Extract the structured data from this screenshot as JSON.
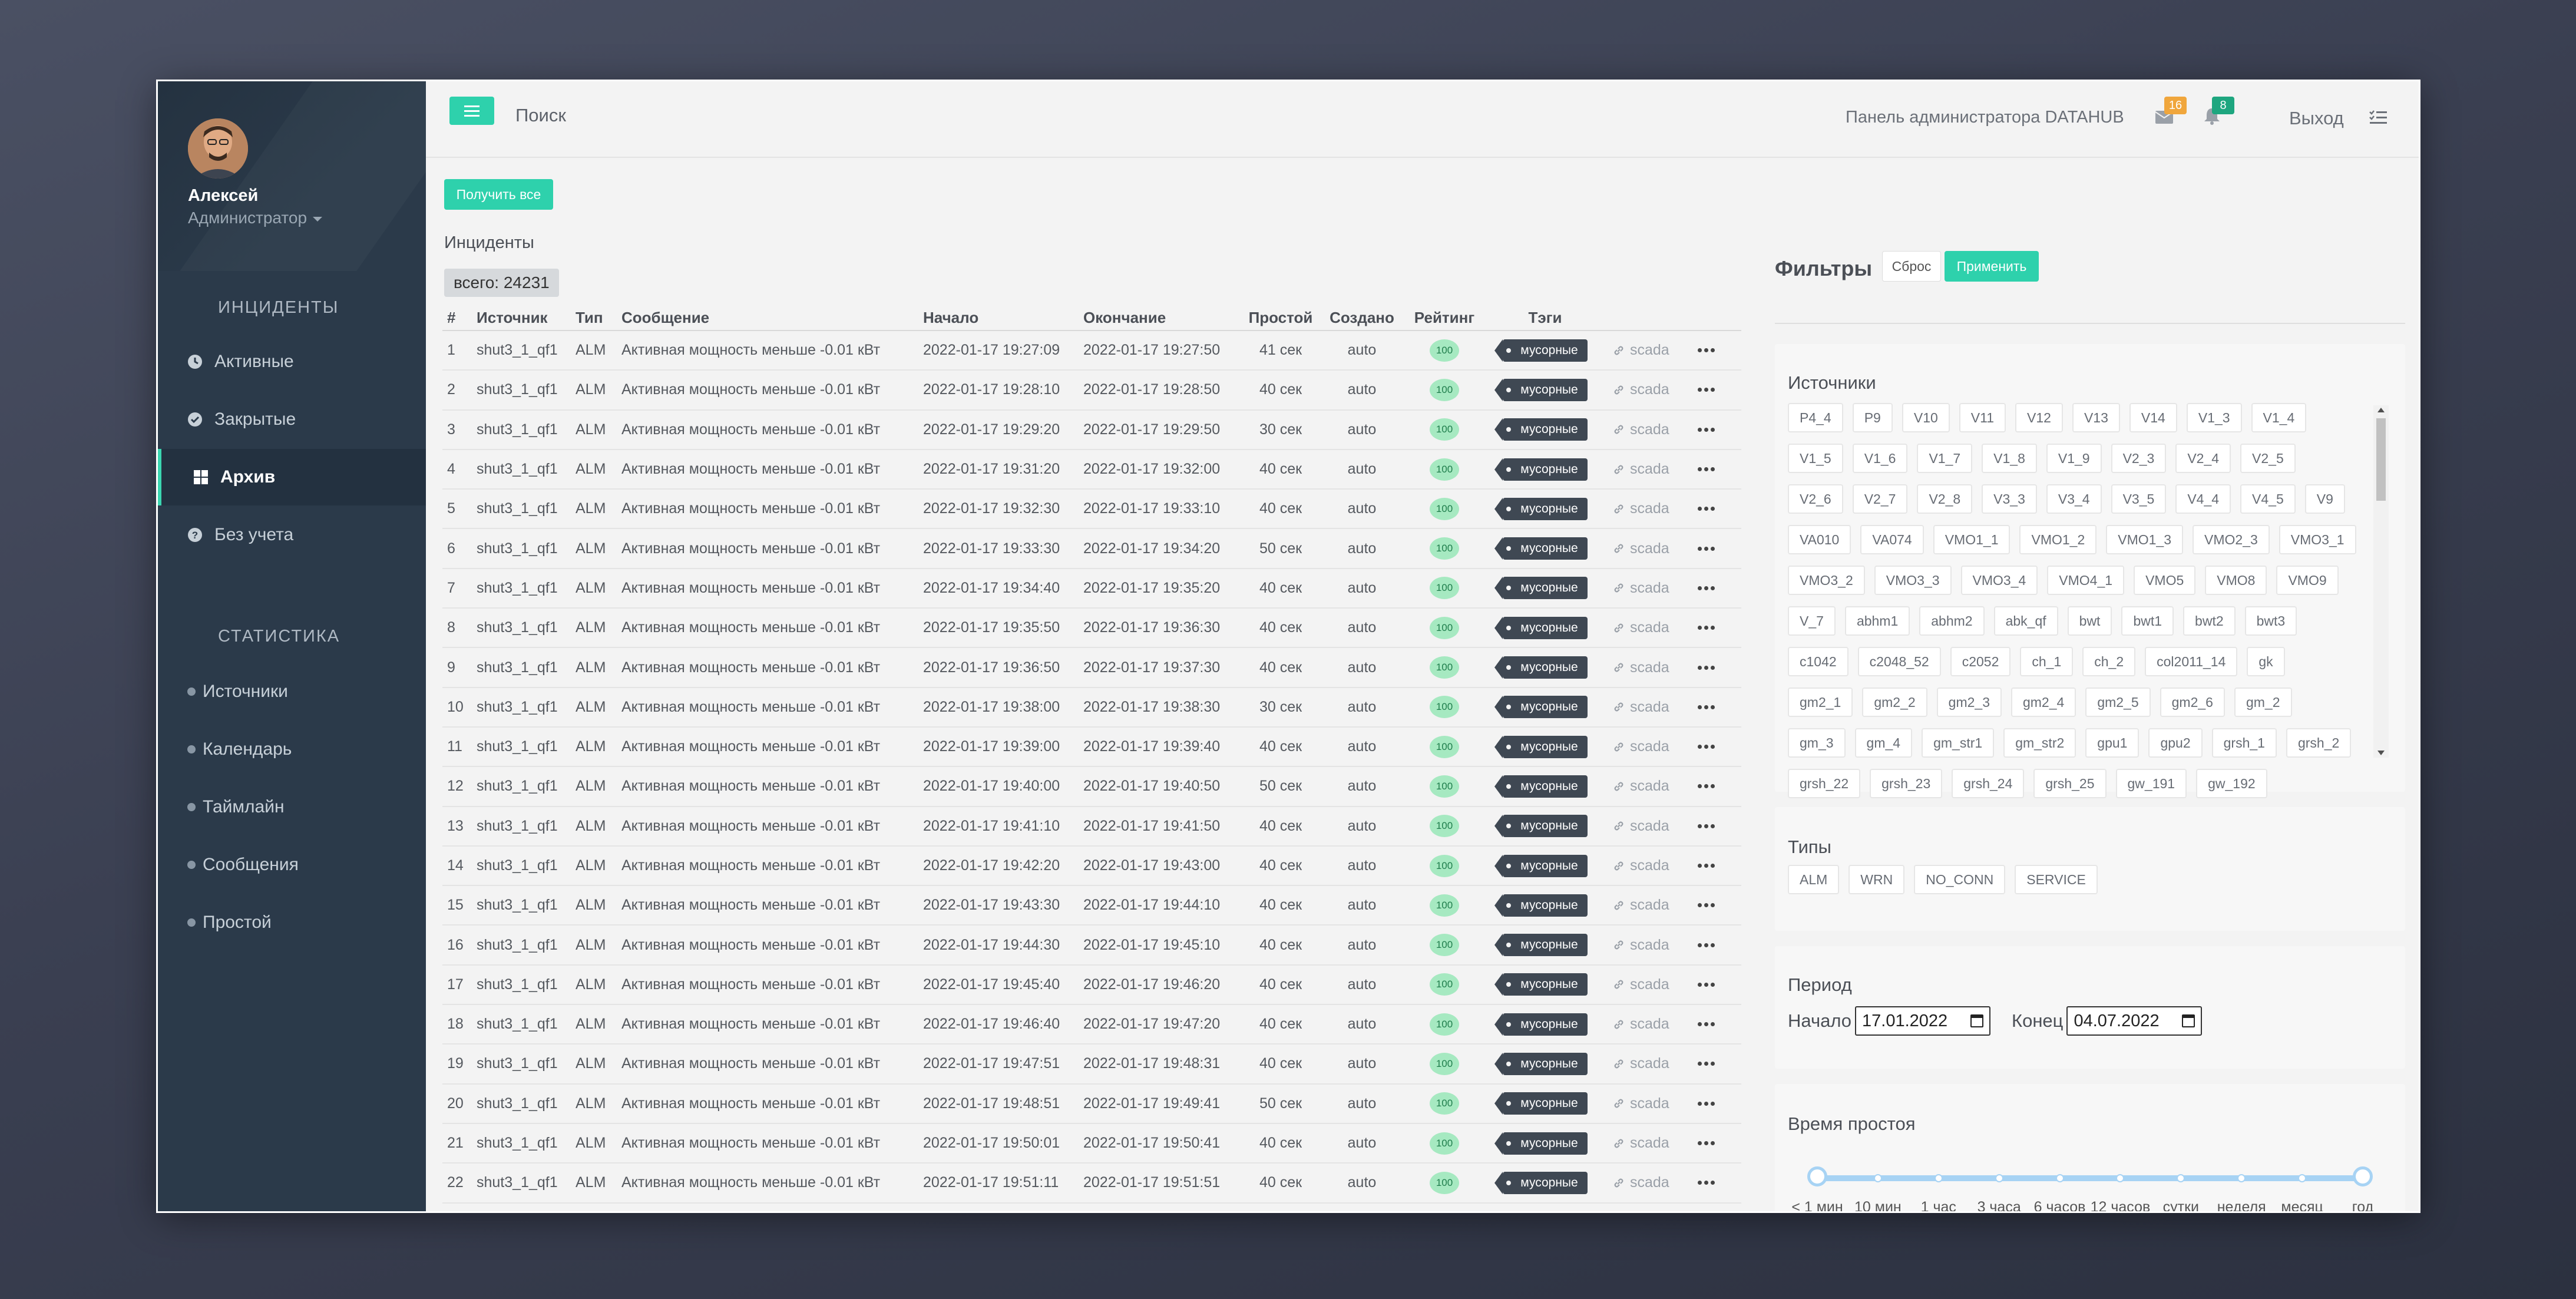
{
  "sidebar": {
    "user_name": "Алексей",
    "user_role": "Администратор",
    "incidents_header": "ИНЦИДЕНТЫ",
    "incidents": [
      {
        "label": "Активные",
        "icon": "clock-icon"
      },
      {
        "label": "Закрытые",
        "icon": "check-circle-icon"
      },
      {
        "label": "Архив",
        "icon": "grid-icon",
        "active": true
      },
      {
        "label": "Без учета",
        "icon": "question-circle-icon"
      }
    ],
    "stats_header": "СТАТИСТИКА",
    "stats": [
      "Источники",
      "Календарь",
      "Таймлайн",
      "Сообщения",
      "Простой"
    ]
  },
  "topbar": {
    "search": "Поиск",
    "admin_title": "Панель администратора DATAHUB",
    "mail_count": "16",
    "bell_count": "8",
    "logout": "Выход",
    "colors": {
      "mail_badge": "#f0a63c",
      "bell_badge": "#1ea67f",
      "accent": "#2ed1ac"
    }
  },
  "main": {
    "get_all": "Получить все",
    "incidents_title": "Инциденты",
    "total": "всего: 24231",
    "columns": [
      "#",
      "Источник",
      "Тип",
      "Сообщение",
      "Начало",
      "Окончание",
      "Простой",
      "Создано",
      "Рейтинг",
      "Тэги"
    ],
    "rows": [
      {
        "n": "1",
        "source": "shut3_1_qf1",
        "type": "ALM",
        "message": "Активная мощность меньше -0.01 кВт",
        "start": "2022-01-17 19:27:09",
        "end": "2022-01-17 19:27:50",
        "downtime": "41 сек",
        "created": "auto",
        "rating": "100",
        "tag": "мусорные",
        "link": "scada"
      },
      {
        "n": "2",
        "source": "shut3_1_qf1",
        "type": "ALM",
        "message": "Активная мощность меньше -0.01 кВт",
        "start": "2022-01-17 19:28:10",
        "end": "2022-01-17 19:28:50",
        "downtime": "40 сек",
        "created": "auto",
        "rating": "100",
        "tag": "мусорные",
        "link": "scada"
      },
      {
        "n": "3",
        "source": "shut3_1_qf1",
        "type": "ALM",
        "message": "Активная мощность меньше -0.01 кВт",
        "start": "2022-01-17 19:29:20",
        "end": "2022-01-17 19:29:50",
        "downtime": "30 сек",
        "created": "auto",
        "rating": "100",
        "tag": "мусорные",
        "link": "scada"
      },
      {
        "n": "4",
        "source": "shut3_1_qf1",
        "type": "ALM",
        "message": "Активная мощность меньше -0.01 кВт",
        "start": "2022-01-17 19:31:20",
        "end": "2022-01-17 19:32:00",
        "downtime": "40 сек",
        "created": "auto",
        "rating": "100",
        "tag": "мусорные",
        "link": "scada"
      },
      {
        "n": "5",
        "source": "shut3_1_qf1",
        "type": "ALM",
        "message": "Активная мощность меньше -0.01 кВт",
        "start": "2022-01-17 19:32:30",
        "end": "2022-01-17 19:33:10",
        "downtime": "40 сек",
        "created": "auto",
        "rating": "100",
        "tag": "мусорные",
        "link": "scada"
      },
      {
        "n": "6",
        "source": "shut3_1_qf1",
        "type": "ALM",
        "message": "Активная мощность меньше -0.01 кВт",
        "start": "2022-01-17 19:33:30",
        "end": "2022-01-17 19:34:20",
        "downtime": "50 сек",
        "created": "auto",
        "rating": "100",
        "tag": "мусорные",
        "link": "scada"
      },
      {
        "n": "7",
        "source": "shut3_1_qf1",
        "type": "ALM",
        "message": "Активная мощность меньше -0.01 кВт",
        "start": "2022-01-17 19:34:40",
        "end": "2022-01-17 19:35:20",
        "downtime": "40 сек",
        "created": "auto",
        "rating": "100",
        "tag": "мусорные",
        "link": "scada"
      },
      {
        "n": "8",
        "source": "shut3_1_qf1",
        "type": "ALM",
        "message": "Активная мощность меньше -0.01 кВт",
        "start": "2022-01-17 19:35:50",
        "end": "2022-01-17 19:36:30",
        "downtime": "40 сек",
        "created": "auto",
        "rating": "100",
        "tag": "мусорные",
        "link": "scada"
      },
      {
        "n": "9",
        "source": "shut3_1_qf1",
        "type": "ALM",
        "message": "Активная мощность меньше -0.01 кВт",
        "start": "2022-01-17 19:36:50",
        "end": "2022-01-17 19:37:30",
        "downtime": "40 сек",
        "created": "auto",
        "rating": "100",
        "tag": "мусорные",
        "link": "scada"
      },
      {
        "n": "10",
        "source": "shut3_1_qf1",
        "type": "ALM",
        "message": "Активная мощность меньше -0.01 кВт",
        "start": "2022-01-17 19:38:00",
        "end": "2022-01-17 19:38:30",
        "downtime": "30 сек",
        "created": "auto",
        "rating": "100",
        "tag": "мусорные",
        "link": "scada"
      },
      {
        "n": "11",
        "source": "shut3_1_qf1",
        "type": "ALM",
        "message": "Активная мощность меньше -0.01 кВт",
        "start": "2022-01-17 19:39:00",
        "end": "2022-01-17 19:39:40",
        "downtime": "40 сек",
        "created": "auto",
        "rating": "100",
        "tag": "мусорные",
        "link": "scada"
      },
      {
        "n": "12",
        "source": "shut3_1_qf1",
        "type": "ALM",
        "message": "Активная мощность меньше -0.01 кВт",
        "start": "2022-01-17 19:40:00",
        "end": "2022-01-17 19:40:50",
        "downtime": "50 сек",
        "created": "auto",
        "rating": "100",
        "tag": "мусорные",
        "link": "scada"
      },
      {
        "n": "13",
        "source": "shut3_1_qf1",
        "type": "ALM",
        "message": "Активная мощность меньше -0.01 кВт",
        "start": "2022-01-17 19:41:10",
        "end": "2022-01-17 19:41:50",
        "downtime": "40 сек",
        "created": "auto",
        "rating": "100",
        "tag": "мусорные",
        "link": "scada"
      },
      {
        "n": "14",
        "source": "shut3_1_qf1",
        "type": "ALM",
        "message": "Активная мощность меньше -0.01 кВт",
        "start": "2022-01-17 19:42:20",
        "end": "2022-01-17 19:43:00",
        "downtime": "40 сек",
        "created": "auto",
        "rating": "100",
        "tag": "мусорные",
        "link": "scada"
      },
      {
        "n": "15",
        "source": "shut3_1_qf1",
        "type": "ALM",
        "message": "Активная мощность меньше -0.01 кВт",
        "start": "2022-01-17 19:43:30",
        "end": "2022-01-17 19:44:10",
        "downtime": "40 сек",
        "created": "auto",
        "rating": "100",
        "tag": "мусорные",
        "link": "scada"
      },
      {
        "n": "16",
        "source": "shut3_1_qf1",
        "type": "ALM",
        "message": "Активная мощность меньше -0.01 кВт",
        "start": "2022-01-17 19:44:30",
        "end": "2022-01-17 19:45:10",
        "downtime": "40 сек",
        "created": "auto",
        "rating": "100",
        "tag": "мусорные",
        "link": "scada"
      },
      {
        "n": "17",
        "source": "shut3_1_qf1",
        "type": "ALM",
        "message": "Активная мощность меньше -0.01 кВт",
        "start": "2022-01-17 19:45:40",
        "end": "2022-01-17 19:46:20",
        "downtime": "40 сек",
        "created": "auto",
        "rating": "100",
        "tag": "мусорные",
        "link": "scada"
      },
      {
        "n": "18",
        "source": "shut3_1_qf1",
        "type": "ALM",
        "message": "Активная мощность меньше -0.01 кВт",
        "start": "2022-01-17 19:46:40",
        "end": "2022-01-17 19:47:20",
        "downtime": "40 сек",
        "created": "auto",
        "rating": "100",
        "tag": "мусорные",
        "link": "scada"
      },
      {
        "n": "19",
        "source": "shut3_1_qf1",
        "type": "ALM",
        "message": "Активная мощность меньше -0.01 кВт",
        "start": "2022-01-17 19:47:51",
        "end": "2022-01-17 19:48:31",
        "downtime": "40 сек",
        "created": "auto",
        "rating": "100",
        "tag": "мусорные",
        "link": "scada"
      },
      {
        "n": "20",
        "source": "shut3_1_qf1",
        "type": "ALM",
        "message": "Активная мощность меньше -0.01 кВт",
        "start": "2022-01-17 19:48:51",
        "end": "2022-01-17 19:49:41",
        "downtime": "50 сек",
        "created": "auto",
        "rating": "100",
        "tag": "мусорные",
        "link": "scada"
      },
      {
        "n": "21",
        "source": "shut3_1_qf1",
        "type": "ALM",
        "message": "Активная мощность меньше -0.01 кВт",
        "start": "2022-01-17 19:50:01",
        "end": "2022-01-17 19:50:41",
        "downtime": "40 сек",
        "created": "auto",
        "rating": "100",
        "tag": "мусорные",
        "link": "scada"
      },
      {
        "n": "22",
        "source": "shut3_1_qf1",
        "type": "ALM",
        "message": "Активная мощность меньше -0.01 кВт",
        "start": "2022-01-17 19:51:11",
        "end": "2022-01-17 19:51:51",
        "downtime": "40 сек",
        "created": "auto",
        "rating": "100",
        "tag": "мусорные",
        "link": "scada"
      }
    ]
  },
  "filters": {
    "title": "Фильтры",
    "reset": "Сброс",
    "apply": "Применить",
    "sources_title": "Источники",
    "sources": [
      "P4_4",
      "P9",
      "V10",
      "V11",
      "V12",
      "V13",
      "V14",
      "V1_3",
      "V1_4",
      "V1_5",
      "V1_6",
      "V1_7",
      "V1_8",
      "V1_9",
      "V2_3",
      "V2_4",
      "V2_5",
      "V2_6",
      "V2_7",
      "V2_8",
      "V3_3",
      "V3_4",
      "V3_5",
      "V4_4",
      "V4_5",
      "V9",
      "VA010",
      "VA074",
      "VMO1_1",
      "VMO1_2",
      "VMO1_3",
      "VMO2_3",
      "VMO3_1",
      "VMO3_2",
      "VMO3_3",
      "VMO3_4",
      "VMO4_1",
      "VMO5",
      "VMO8",
      "VMO9",
      "V_7",
      "abhm1",
      "abhm2",
      "abk_qf",
      "bwt",
      "bwt1",
      "bwt2",
      "bwt3",
      "c1042",
      "c2048_52",
      "c2052",
      "ch_1",
      "ch_2",
      "col2011_14",
      "gk",
      "gm2_1",
      "gm2_2",
      "gm2_3",
      "gm2_4",
      "gm2_5",
      "gm2_6",
      "gm_2",
      "gm_3",
      "gm_4",
      "gm_str1",
      "gm_str2",
      "gpu1",
      "gpu2",
      "grsh_1",
      "grsh_2",
      "grsh_22",
      "grsh_23",
      "grsh_24",
      "grsh_25",
      "gw_191",
      "gw_192"
    ],
    "types_title": "Типы",
    "types": [
      "ALM",
      "WRN",
      "NO_CONN",
      "SERVICE"
    ],
    "period_title": "Период",
    "start_label": "Начало",
    "start_value": "17.01.2022",
    "end_label": "Конец",
    "end_value": "04.07.2022",
    "downtime_title": "Время простоя",
    "downtime_marks": [
      "< 1 мин",
      "10 мин",
      "1 час",
      "3 часа",
      "6 часов",
      "12 часов",
      "сутки",
      "неделя",
      "месяц",
      "год"
    ],
    "downtime_range": {
      "from_index": 0,
      "to_index": 9
    }
  }
}
